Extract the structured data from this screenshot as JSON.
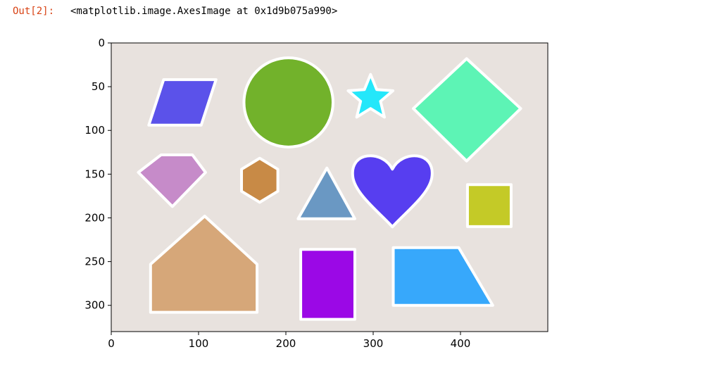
{
  "cell": {
    "prompt": "Out[2]:",
    "output": "<matplotlib.image.AxesImage at 0x1d9b075a990>"
  },
  "axes": {
    "xlim": [
      0,
      500
    ],
    "ylim": [
      330,
      0
    ],
    "xticks": [
      0,
      100,
      200,
      300,
      400
    ],
    "yticks": [
      0,
      50,
      100,
      150,
      200,
      250,
      300
    ],
    "background": "#e8e2de",
    "outline_color": "#ffffff"
  },
  "image_shapes": [
    {
      "name": "parallelogram",
      "color": "#5b52ea",
      "points": [
        [
          60,
          42
        ],
        [
          120,
          42
        ],
        [
          103,
          94
        ],
        [
          43,
          94
        ]
      ]
    },
    {
      "name": "circle",
      "color": "#72b22b",
      "cx": 203,
      "cy": 68,
      "r": 51
    },
    {
      "name": "star",
      "color": "#24e7fa",
      "cx": 297,
      "cy": 63,
      "r_outer": 27,
      "r_inner": 12
    },
    {
      "name": "diamond",
      "color": "#5df4b5",
      "points": [
        [
          407,
          18
        ],
        [
          469,
          75
        ],
        [
          407,
          135
        ],
        [
          346,
          75
        ]
      ]
    },
    {
      "name": "pentagon-gem",
      "color": "#c68bc9",
      "points": [
        [
          57,
          128
        ],
        [
          93,
          128
        ],
        [
          108,
          148
        ],
        [
          70,
          187
        ],
        [
          31,
          148
        ]
      ]
    },
    {
      "name": "hexagon",
      "color": "#c88a46",
      "cx": 170,
      "cy": 157,
      "r": 24
    },
    {
      "name": "triangle",
      "color": "#6a98c3",
      "points": [
        [
          247,
          143
        ],
        [
          279,
          201
        ],
        [
          214,
          201
        ]
      ]
    },
    {
      "name": "heart",
      "color": "#573ef0",
      "cx": 322,
      "cy": 162
    },
    {
      "name": "square",
      "color": "#c4ca27",
      "points": [
        [
          408,
          162
        ],
        [
          458,
          162
        ],
        [
          458,
          210
        ],
        [
          408,
          210
        ]
      ]
    },
    {
      "name": "house",
      "color": "#d6a779",
      "points": [
        [
          107,
          198
        ],
        [
          167,
          253
        ],
        [
          167,
          308
        ],
        [
          45,
          308
        ],
        [
          45,
          253
        ]
      ]
    },
    {
      "name": "rectangle",
      "color": "#9b08e6",
      "points": [
        [
          217,
          236
        ],
        [
          279,
          236
        ],
        [
          279,
          316
        ],
        [
          217,
          316
        ]
      ]
    },
    {
      "name": "trapezoid",
      "color": "#37a8fb",
      "points": [
        [
          323,
          234
        ],
        [
          398,
          234
        ],
        [
          437,
          300
        ],
        [
          323,
          300
        ]
      ]
    }
  ]
}
